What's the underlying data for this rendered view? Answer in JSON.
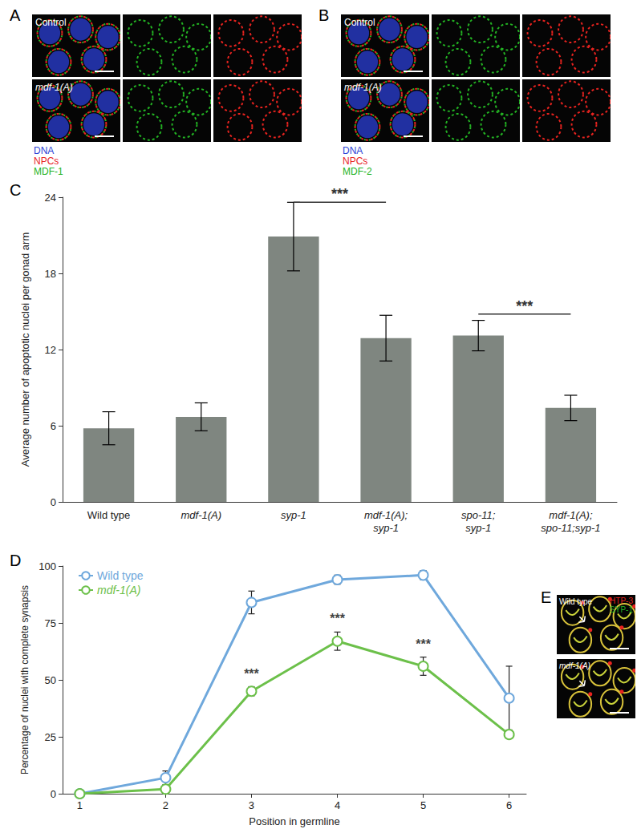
{
  "image_panels": [
    {
      "label": "A",
      "rows": [
        "Control",
        "mdf-1(A)"
      ],
      "channels": [
        {
          "name": "DNA",
          "color": "#2b3fd6"
        },
        {
          "name": "NPCs",
          "color": "#e8231f"
        },
        {
          "name": "MDF-1",
          "color": "#23b323"
        }
      ]
    },
    {
      "label": "B",
      "rows": [
        "Control",
        "mdf-1(A)"
      ],
      "channels": [
        {
          "name": "DNA",
          "color": "#2b3fd6"
        },
        {
          "name": "NPCs",
          "color": "#e8231f"
        },
        {
          "name": "MDF-2",
          "color": "#23b323"
        }
      ]
    },
    {
      "label": "E",
      "rows": [
        "Wild type",
        "mdf-1(A)"
      ],
      "channels": [
        {
          "name": "HTP-3",
          "color": "#e8231f"
        },
        {
          "name": "SYP-1",
          "color": "#23b323"
        }
      ]
    }
  ],
  "chart_data": [
    {
      "panel": "C",
      "type": "bar",
      "categories": [
        "Wild type",
        "mdf-1(A)",
        "syp-1",
        "mdf-1(A);\nsyp-1",
        "spo-11;\nsyp-1",
        "mdf-1(A);\nspo-11;syp-1"
      ],
      "values": [
        5.8,
        6.7,
        20.9,
        12.9,
        13.1,
        7.4
      ],
      "errors": [
        1.3,
        1.1,
        2.7,
        1.8,
        1.2,
        1.0
      ],
      "color": "#7f8680",
      "ylabel": "Average number of apoptotic nuclei per gonad arm",
      "ylim": [
        0,
        24
      ],
      "yticks": [
        0,
        6,
        12,
        18,
        24
      ],
      "grid": false,
      "annotations": [
        {
          "text": "***",
          "from": "syp-1",
          "to": "mdf-1(A);\nsyp-1",
          "y": 23.6
        },
        {
          "text": "***",
          "from": "spo-11;\nsyp-1",
          "to": "mdf-1(A);\nspo-11;syp-1",
          "y": 14.8
        }
      ]
    },
    {
      "panel": "D",
      "type": "line",
      "xlabel": "Position in germline",
      "ylabel": "Percentage of nuclei with complete synapsis",
      "x": [
        1,
        2,
        3,
        4,
        5,
        6
      ],
      "series": [
        {
          "name": "Wild type",
          "color": "#6fa8dc",
          "values": [
            0,
            7,
            84,
            94,
            96,
            42
          ],
          "errors": [
            0,
            3,
            5,
            2,
            2,
            14
          ]
        },
        {
          "name": "mdf-1(A)",
          "color": "#6cc04a",
          "values": [
            0,
            2,
            45,
            67,
            56,
            26
          ],
          "errors": [
            0,
            1,
            2,
            4,
            4,
            1
          ]
        }
      ],
      "xlim": [
        0.8,
        6.2
      ],
      "xticks": [
        1,
        2,
        3,
        4,
        5,
        6
      ],
      "ylim": [
        0,
        100
      ],
      "yticks": [
        0,
        25,
        50,
        75,
        100
      ],
      "marker": "circle",
      "legend": "top-left",
      "grid": false,
      "annotations": [
        {
          "x": 3,
          "y": 50,
          "text": "***"
        },
        {
          "x": 4,
          "y": 74,
          "text": "***"
        },
        {
          "x": 5,
          "y": 63,
          "text": "***"
        }
      ]
    }
  ]
}
